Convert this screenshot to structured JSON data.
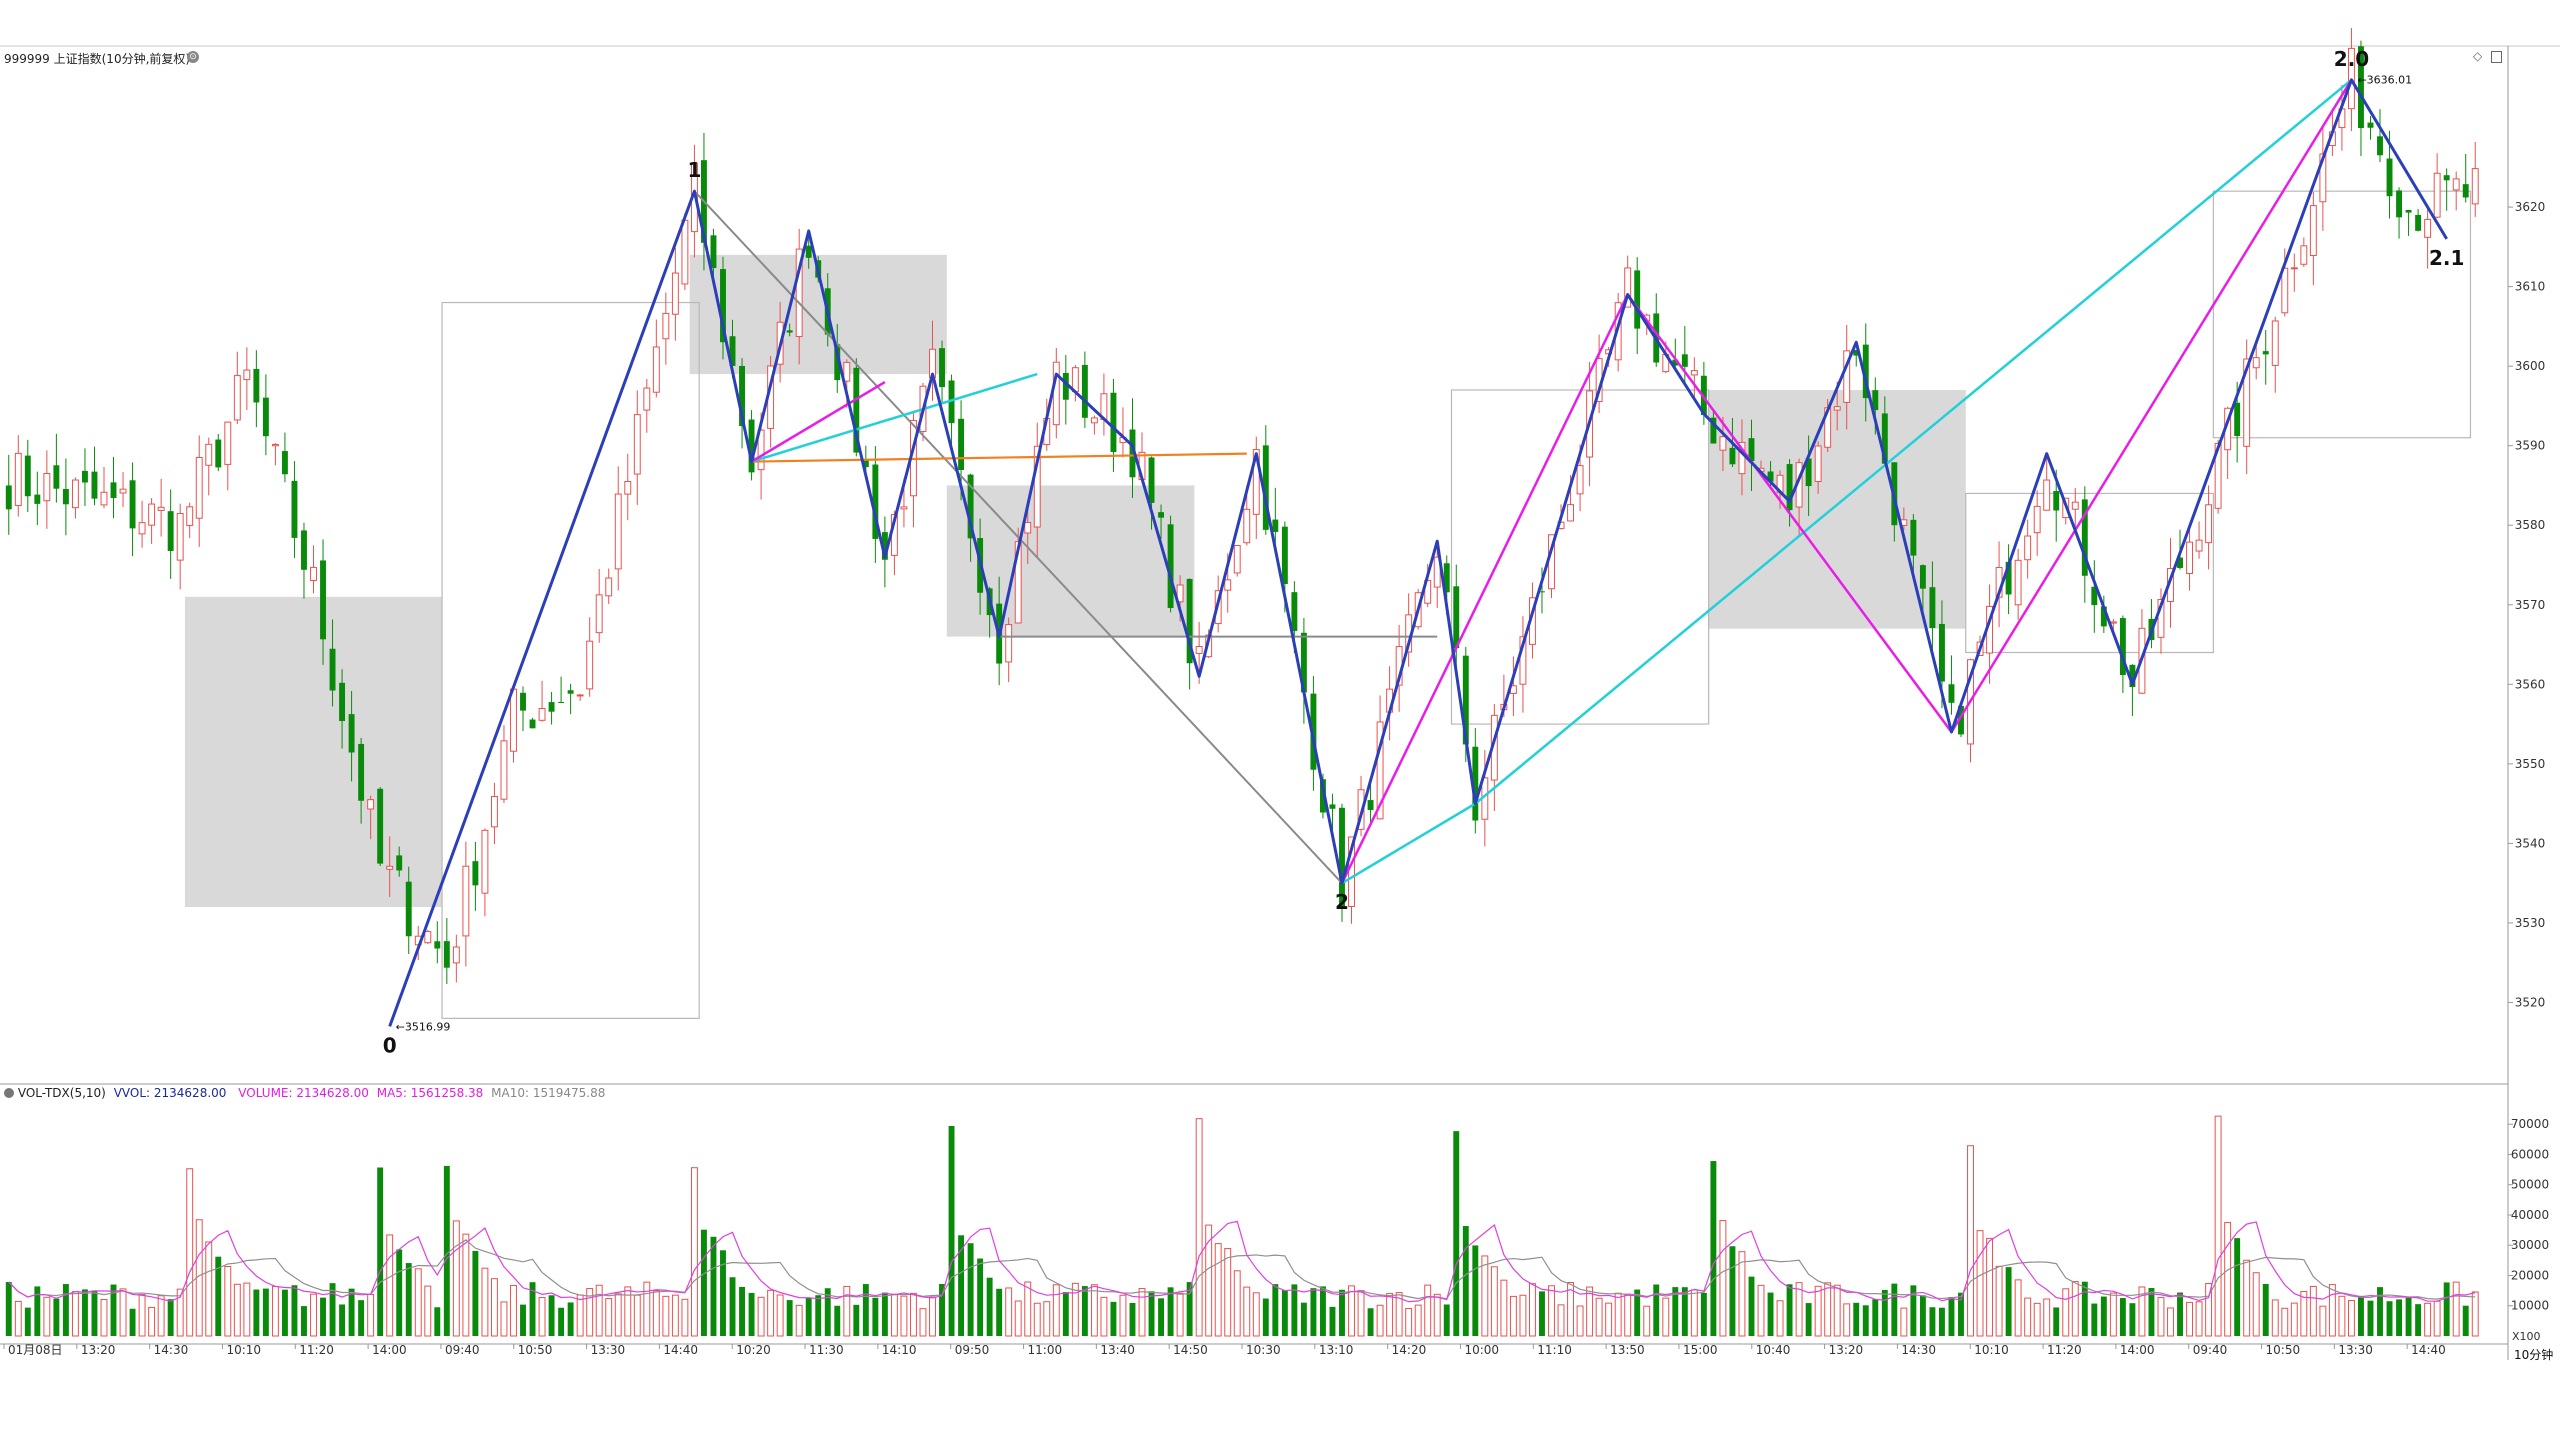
{
  "window": {
    "title": "999999 上证指数(10分钟,前复权)",
    "period_label": "10分钟",
    "zoom_label": "X100"
  },
  "volume_header": {
    "indicator": "VOL-TDX(5,10)",
    "vvol": "VVOL: 2134628.00",
    "volume": "VOLUME: 2134628.00",
    "ma5": "MA5: 1561258.38",
    "ma10": "MA10: 1519475.88"
  },
  "colors": {
    "up": "#e8524f",
    "down": "#0a8a0a",
    "zigzag_blue": "#2a3fb8",
    "magenta": "#e81ee8",
    "cyan": "#22d0d8",
    "orange": "#f08020",
    "gray_line": "#8a8a8a",
    "box_fill": "#d9d9d9",
    "box_outline": "#b8b8b8",
    "ma5": "#e040e0",
    "ma10": "#909090"
  },
  "chart_data": {
    "type": "candlestick",
    "title": "999999 上证指数(10分钟,前复权)",
    "price_axis": {
      "ylim": [
        3510,
        3640
      ],
      "ticks": [
        3520,
        3530,
        3540,
        3550,
        3560,
        3570,
        3580,
        3590,
        3600,
        3610,
        3620
      ]
    },
    "volume_axis": {
      "ylim": [
        0,
        78000
      ],
      "ticks": [
        10000,
        20000,
        30000,
        40000,
        50000,
        60000,
        70000
      ]
    },
    "time_labels": [
      "01月08日",
      "13:20",
      "14:30",
      "10:10",
      "11:20",
      "14:00",
      "09:40",
      "10:50",
      "13:30",
      "14:40",
      "10:20",
      "11:30",
      "14:10",
      "09:50",
      "11:00",
      "13:40",
      "14:50",
      "10:30",
      "13:10",
      "14:20",
      "10:00",
      "11:10",
      "13:50",
      "15:00",
      "10:40",
      "13:20",
      "14:30",
      "10:10",
      "11:20",
      "14:00",
      "09:40",
      "10:50",
      "13:30",
      "14:40"
    ],
    "bar_count": 260,
    "swing_points": [
      {
        "bar": 0,
        "price": 3586
      },
      {
        "bar": 18,
        "price": 3580
      },
      {
        "bar": 25,
        "price": 3598
      },
      {
        "bar": 32,
        "price": 3572
      },
      {
        "bar": 39,
        "price": 3537
      },
      {
        "bar": 46,
        "price": 3525
      },
      {
        "bar": 53,
        "price": 3556
      },
      {
        "bar": 60,
        "price": 3560
      },
      {
        "bar": 72,
        "price": 3622
      },
      {
        "bar": 78,
        "price": 3588
      },
      {
        "bar": 84,
        "price": 3617
      },
      {
        "bar": 92,
        "price": 3576
      },
      {
        "bar": 97,
        "price": 3599
      },
      {
        "bar": 104,
        "price": 3566
      },
      {
        "bar": 110,
        "price": 3599
      },
      {
        "bar": 118,
        "price": 3590
      },
      {
        "bar": 125,
        "price": 3561
      },
      {
        "bar": 131,
        "price": 3589
      },
      {
        "bar": 140,
        "price": 3535
      },
      {
        "bar": 150,
        "price": 3578
      },
      {
        "bar": 154,
        "price": 3545
      },
      {
        "bar": 170,
        "price": 3609
      },
      {
        "bar": 178,
        "price": 3594
      },
      {
        "bar": 187,
        "price": 3583
      },
      {
        "bar": 194,
        "price": 3603
      },
      {
        "bar": 204,
        "price": 3554
      },
      {
        "bar": 214,
        "price": 3589
      },
      {
        "bar": 223,
        "price": 3560
      },
      {
        "bar": 234,
        "price": 3594
      },
      {
        "bar": 246,
        "price": 3636
      },
      {
        "bar": 252,
        "price": 3620
      },
      {
        "bar": 259,
        "price": 3622
      }
    ],
    "candle_seed": 7,
    "point_labels": [
      {
        "text": "0",
        "bar": 40,
        "price": 3516.99,
        "pos": "below"
      },
      {
        "text": "1",
        "bar": 72,
        "price": 3622,
        "pos": "above"
      },
      {
        "text": "2",
        "bar": 140,
        "price": 3535,
        "pos": "below"
      },
      {
        "text": "2.0",
        "bar": 246,
        "price": 3636,
        "pos": "above"
      },
      {
        "text": "2.1",
        "bar": 256,
        "price": 3616,
        "pos": "below"
      }
    ],
    "price_annotations": [
      {
        "text": "3516.99",
        "bar": 40,
        "price": 3516.99
      },
      {
        "text": "3636.01",
        "bar": 246,
        "price": 3636.01
      }
    ],
    "zigzag_blue": [
      [
        40,
        3516.99
      ],
      [
        72,
        3622
      ],
      [
        78,
        3588
      ],
      [
        84,
        3617
      ],
      [
        92,
        3576
      ],
      [
        97,
        3599
      ],
      [
        104,
        3566
      ],
      [
        110,
        3599
      ],
      [
        118,
        3590
      ],
      [
        125,
        3561
      ],
      [
        131,
        3589
      ],
      [
        140,
        3535
      ],
      [
        150,
        3578
      ],
      [
        154,
        3545
      ],
      [
        170,
        3609
      ],
      [
        178,
        3594
      ],
      [
        187,
        3583
      ],
      [
        194,
        3603
      ],
      [
        204,
        3554
      ],
      [
        214,
        3589
      ],
      [
        223,
        3560
      ],
      [
        246,
        3636
      ],
      [
        256,
        3616
      ]
    ],
    "magenta_lines": [
      [
        [
          78,
          3588
        ],
        [
          92,
          3598
        ]
      ],
      [
        [
          140,
          3535
        ],
        [
          170,
          3609
        ],
        [
          204,
          3554
        ],
        [
          246,
          3636
        ]
      ]
    ],
    "cyan_lines": [
      [
        [
          78,
          3588
        ],
        [
          108,
          3599
        ]
      ],
      [
        [
          140,
          3535
        ],
        [
          154,
          3545
        ],
        [
          246,
          3636
        ]
      ]
    ],
    "orange_lines": [
      [
        [
          78,
          3588
        ],
        [
          130,
          3589
        ]
      ]
    ],
    "gray_lines": [
      [
        [
          72,
          3622
        ],
        [
          140,
          3535
        ]
      ],
      [
        [
          104,
          3566
        ],
        [
          150,
          3566
        ]
      ]
    ],
    "filled_boxes": [
      {
        "b0": 19,
        "b1": 45,
        "p0": 3532,
        "p1": 3571
      },
      {
        "b0": 72,
        "b1": 98,
        "p0": 3599,
        "p1": 3614
      },
      {
        "b0": 99,
        "b1": 124,
        "p0": 3566,
        "p1": 3585
      },
      {
        "b0": 179,
        "b1": 205,
        "p0": 3567,
        "p1": 3597
      }
    ],
    "outline_boxes": [
      {
        "b0": 46,
        "b1": 72,
        "p0": 3518,
        "p1": 3608
      },
      {
        "b0": 152,
        "b1": 178,
        "p0": 3555,
        "p1": 3597
      },
      {
        "b0": 206,
        "b1": 231,
        "p0": 3564,
        "p1": 3584
      },
      {
        "b0": 232,
        "b1": 258,
        "p0": 3591,
        "p1": 3622
      }
    ],
    "volume_spikes": [
      19,
      39,
      46,
      72,
      99,
      125,
      152,
      179,
      206,
      232
    ]
  }
}
